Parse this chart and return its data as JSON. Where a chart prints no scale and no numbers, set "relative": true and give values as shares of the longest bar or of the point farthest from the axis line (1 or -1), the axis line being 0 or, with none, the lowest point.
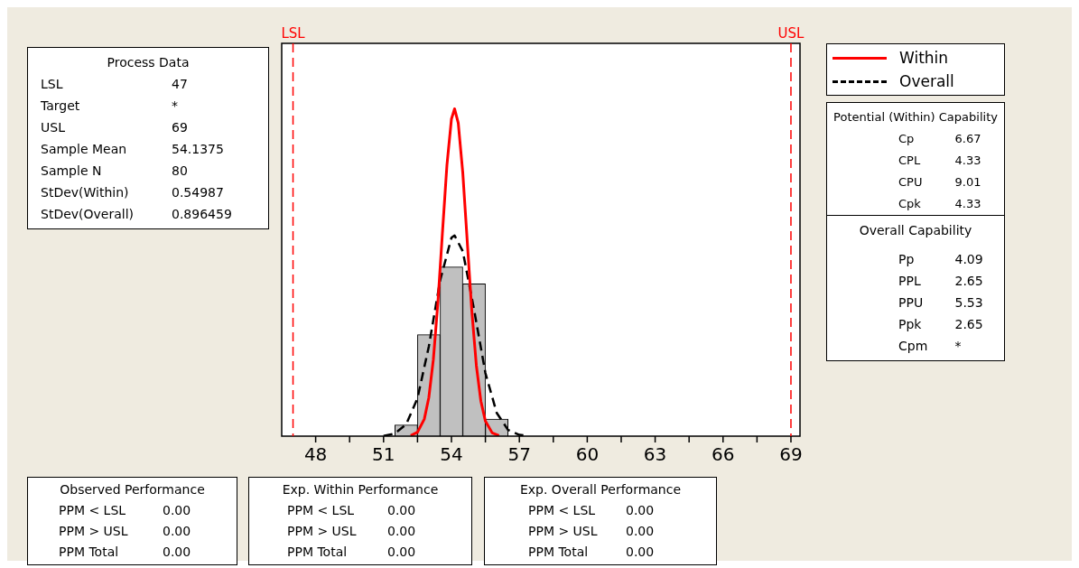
{
  "chart_data": {
    "type": "histogram",
    "relative": true,
    "bins": [
      51.5,
      52.5,
      53.5,
      54.5,
      55.5,
      56.5
    ],
    "values": [
      0.034,
      0.31,
      0.517,
      0.465,
      0.052
    ],
    "color": "#c0c0c0",
    "series": [
      {
        "name": "Within",
        "type": "line",
        "color": "#ff0000",
        "line_style": "solid",
        "x": [
          52.2,
          52.5,
          52.8,
          53.0,
          53.2,
          53.4,
          53.6,
          53.8,
          54.0,
          54.1375,
          54.3,
          54.5,
          54.7,
          54.9,
          55.1,
          55.3,
          55.5,
          55.8,
          56.1
        ],
        "values": [
          0.002,
          0.012,
          0.052,
          0.118,
          0.234,
          0.407,
          0.62,
          0.828,
          0.969,
          1,
          0.957,
          0.805,
          0.593,
          0.382,
          0.216,
          0.107,
          0.046,
          0.01,
          0.002
        ]
      },
      {
        "name": "Overall",
        "type": "line",
        "color": "#000000",
        "line_style": "dashed",
        "x": [
          51.0,
          51.5,
          52.0,
          52.5,
          53.0,
          53.5,
          54.0,
          54.1375,
          54.5,
          55.0,
          55.5,
          56.0,
          56.5,
          57.0,
          57.4
        ],
        "values": [
          0.001,
          0.008,
          0.036,
          0.116,
          0.274,
          0.476,
          0.606,
          0.613,
          0.565,
          0.386,
          0.193,
          0.071,
          0.019,
          0.004,
          0.001
        ]
      }
    ],
    "xlim": [
      46.5,
      69.4
    ],
    "xticks": [
      48,
      {
        "value": 49.5,
        "label": null
      },
      51,
      {
        "value": 52.5,
        "label": null
      },
      54,
      {
        "value": 55.5,
        "label": null
      },
      57,
      {
        "value": 58.5,
        "label": null
      },
      60,
      {
        "value": 61.5,
        "label": null
      },
      63,
      {
        "value": 64.5,
        "label": null
      },
      66,
      {
        "value": 67.5,
        "label": null
      },
      69
    ],
    "grid": false,
    "legend": "right",
    "ref_lines": [
      {
        "axis": "x",
        "value": 47,
        "label": "LSL",
        "color": "#ff0000",
        "line_style": "dashed"
      },
      {
        "axis": "x",
        "value": 69,
        "label": "USL",
        "color": "#ff0000",
        "line_style": "dashed"
      }
    ],
    "annotations": [
      "Process Data\nLSL\t47\nTarget\t*\nUSL\t69\nSample Mean\t54.1375\nSample N\t80\nStDev(Within)\t0.54987\nStDev(Overall)\t0.896459",
      "Potential (Within) Capability\nCp\t6.67\nCPL\t4.33\nCPU\t9.01\nCpk\t4.33",
      "Overall Capability\nPp\t4.09\nPPL\t2.65\nPPU\t5.53\nPpk\t2.65\nCpm\t*",
      "Observed Performance\nPPM < LSL\t0.00\nPPM > USL\t0.00\nPPM Total\t0.00",
      "Exp. Within Performance\nPPM < LSL\t0.00\nPPM > USL\t0.00\nPPM Total\t0.00",
      "Exp. Overall Performance\nPPM < LSL\t0.00\nPPM > USL\t0.00\nPPM Total\t0.00"
    ]
  }
}
